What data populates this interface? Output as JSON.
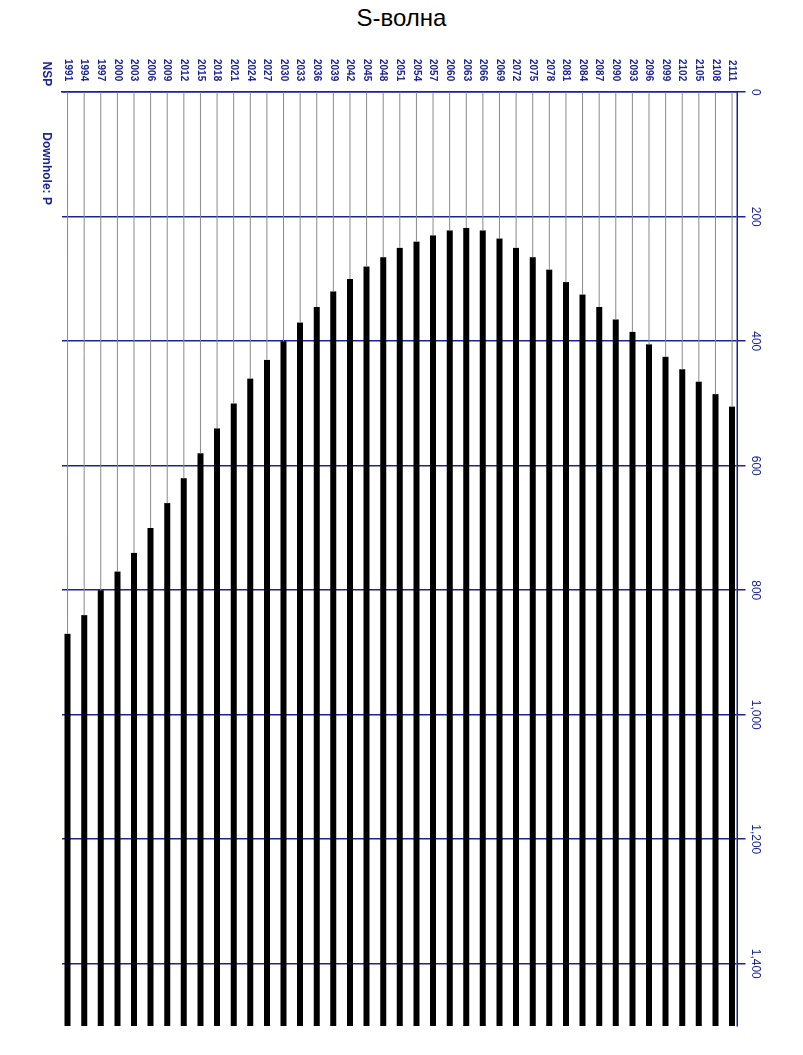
{
  "chart_data": {
    "type": "line",
    "title": "S-волна",
    "annotations": [
      "NSP",
      "Downhole: P"
    ],
    "color": "#000000",
    "grid": true,
    "xlim": [
      0,
      1500
    ],
    "xticks": [
      0,
      200,
      400,
      600,
      800,
      1000,
      1200,
      1400
    ],
    "ylim": [
      1990,
      2112
    ],
    "yticks": [
      1991,
      1994,
      1997,
      2000,
      2003,
      2006,
      2009,
      2012,
      2015,
      2018,
      2021,
      2024,
      2027,
      2030,
      2033,
      2036,
      2039,
      2042,
      2045,
      2048,
      2051,
      2054,
      2057,
      2060,
      2063,
      2066,
      2069,
      2072,
      2075,
      2078,
      2081,
      2084,
      2087,
      2090,
      2093,
      2096,
      2099,
      2102,
      2105,
      2108,
      2111
    ],
    "traces": [
      1991,
      1994,
      1997,
      2000,
      2003,
      2006,
      2009,
      2012,
      2015,
      2018,
      2021,
      2024,
      2027,
      2030,
      2033,
      2036,
      2039,
      2042,
      2045,
      2048,
      2051,
      2054,
      2057,
      2060,
      2063,
      2066,
      2069,
      2072,
      2075,
      2078,
      2081,
      2084,
      2087,
      2090,
      2093,
      2096,
      2099,
      2102,
      2105,
      2108,
      2111
    ],
    "first_break_ms": [
      870,
      840,
      800,
      770,
      740,
      700,
      660,
      620,
      580,
      540,
      500,
      460,
      430,
      400,
      370,
      345,
      320,
      300,
      280,
      265,
      250,
      240,
      230,
      222,
      218,
      222,
      235,
      250,
      265,
      285,
      305,
      325,
      345,
      365,
      385,
      405,
      425,
      445,
      465,
      485,
      505
    ]
  }
}
